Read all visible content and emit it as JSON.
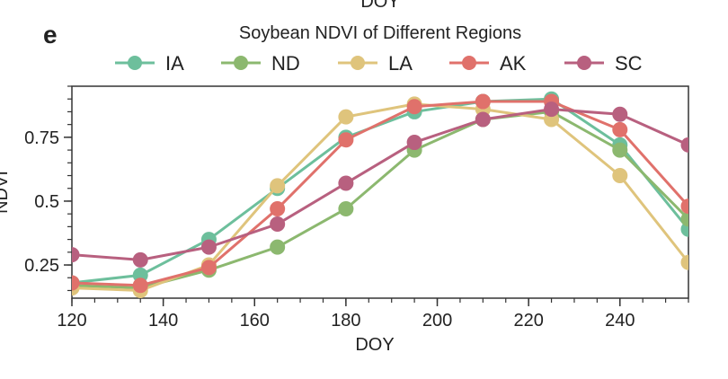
{
  "panel_label": "e",
  "top_cut_label": "DOY",
  "chart_data": {
    "type": "line",
    "title": "Soybean NDVI of Different Regions",
    "xlabel": "DOY",
    "ylabel": "NDVI",
    "xlim": [
      120,
      255
    ],
    "ylim": [
      0.12,
      0.95
    ],
    "xticks": [
      120,
      140,
      160,
      180,
      200,
      220,
      240
    ],
    "xtick_labels": [
      "120",
      "140",
      "160",
      "180",
      "200",
      "220",
      "240"
    ],
    "yticks": [
      0.25,
      0.5,
      0.75
    ],
    "ytick_labels": [
      "0.25",
      "0.5",
      "0.75"
    ],
    "grid": false,
    "legend_position": "top",
    "x": [
      120,
      135,
      150,
      165,
      180,
      195,
      210,
      225,
      240,
      255
    ],
    "series": [
      {
        "name": "IA",
        "color": "#6dbf9c",
        "values": [
          0.18,
          0.21,
          0.35,
          0.55,
          0.75,
          0.85,
          0.89,
          0.9,
          0.72,
          0.39
        ]
      },
      {
        "name": "ND",
        "color": "#8cb86f",
        "values": [
          0.17,
          0.16,
          0.23,
          0.32,
          0.47,
          0.7,
          0.82,
          0.85,
          0.7,
          0.43
        ]
      },
      {
        "name": "LA",
        "color": "#dfc47c",
        "values": [
          0.16,
          0.15,
          0.25,
          0.56,
          0.83,
          0.88,
          0.86,
          0.82,
          0.6,
          0.26
        ]
      },
      {
        "name": "AK",
        "color": "#e0716b",
        "values": [
          0.18,
          0.17,
          0.24,
          0.47,
          0.74,
          0.87,
          0.89,
          0.89,
          0.78,
          0.48
        ]
      },
      {
        "name": "SC",
        "color": "#b8607f",
        "values": [
          0.29,
          0.27,
          0.32,
          0.41,
          0.57,
          0.73,
          0.82,
          0.86,
          0.84,
          0.72
        ]
      }
    ]
  }
}
